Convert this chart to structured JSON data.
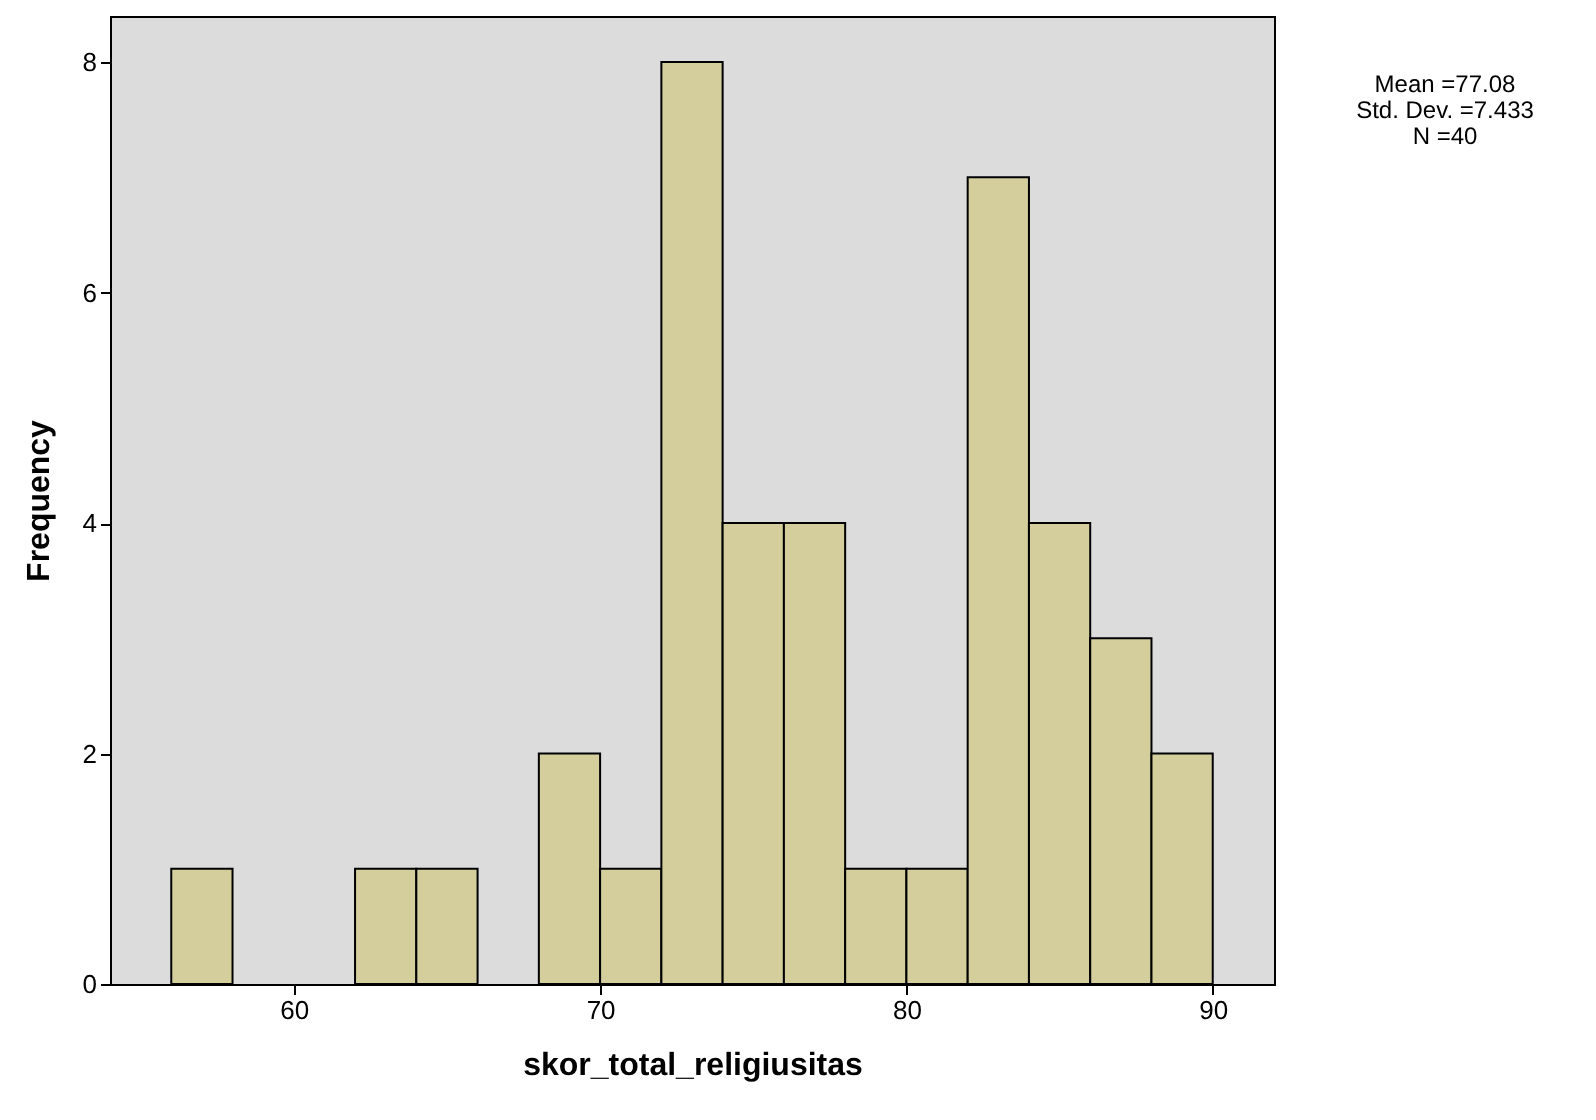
{
  "chart_data": {
    "type": "histogram",
    "xlabel": "skor_total_religiusitas",
    "ylabel": "Frequency",
    "bins": [
      56,
      58,
      60,
      62,
      64,
      66,
      68,
      70,
      72,
      74,
      76,
      78,
      80,
      82,
      84,
      86,
      88,
      90
    ],
    "values": [
      1,
      0,
      0,
      1,
      1,
      0,
      2,
      1,
      8,
      4,
      4,
      1,
      1,
      7,
      4,
      3,
      2
    ],
    "color": "#d3ce9b",
    "xlim": [
      54,
      92
    ],
    "xticks": [
      60,
      70,
      80,
      90
    ],
    "ylim": [
      0,
      8.4
    ],
    "yticks": [
      0,
      2,
      4,
      6,
      8
    ],
    "annotations": [
      "Mean =77.08",
      "Std. Dev. =7.433",
      "N =40"
    ]
  }
}
